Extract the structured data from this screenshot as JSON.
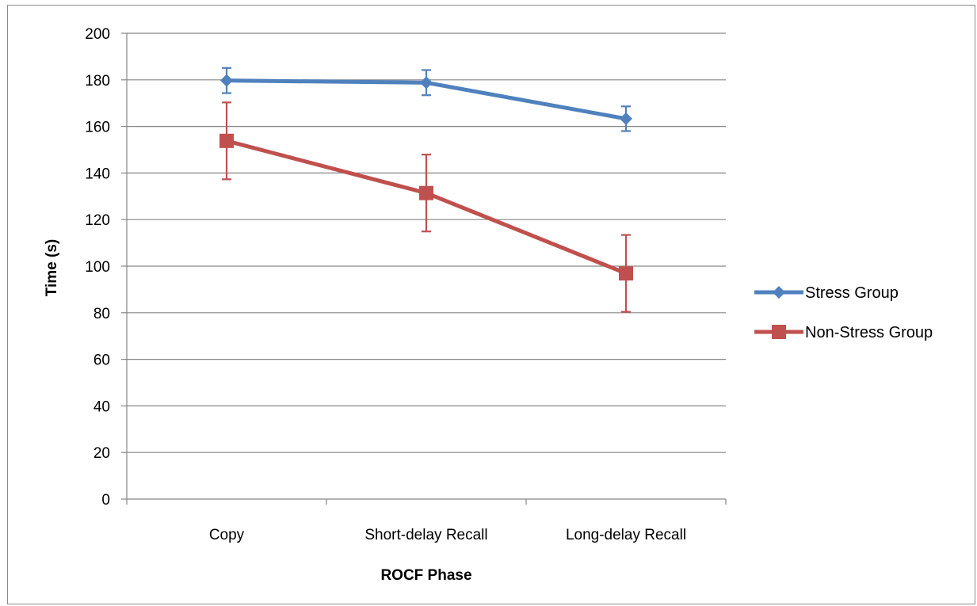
{
  "chart_data": {
    "type": "line",
    "xlabel": "ROCF Phase",
    "ylabel": "Time (s)",
    "categories": [
      "Copy",
      "Short-delay Recall",
      "Long-delay Recall"
    ],
    "ylim": [
      0,
      200
    ],
    "yticks": [
      0,
      20,
      40,
      60,
      80,
      100,
      120,
      140,
      160,
      180,
      200
    ],
    "grid": true,
    "legend_position": "right",
    "series": [
      {
        "name": "Stress Group",
        "values": [
          179.7,
          178.8,
          163.3
        ],
        "error": [
          5.4,
          5.4,
          5.3
        ],
        "color": "#4f81bd",
        "marker": "diamond"
      },
      {
        "name": "Non-Stress Group",
        "values": [
          153.8,
          131.4,
          96.9
        ],
        "error": [
          16.5,
          16.5,
          16.5
        ],
        "color": "#c0504d",
        "marker": "square"
      }
    ]
  }
}
